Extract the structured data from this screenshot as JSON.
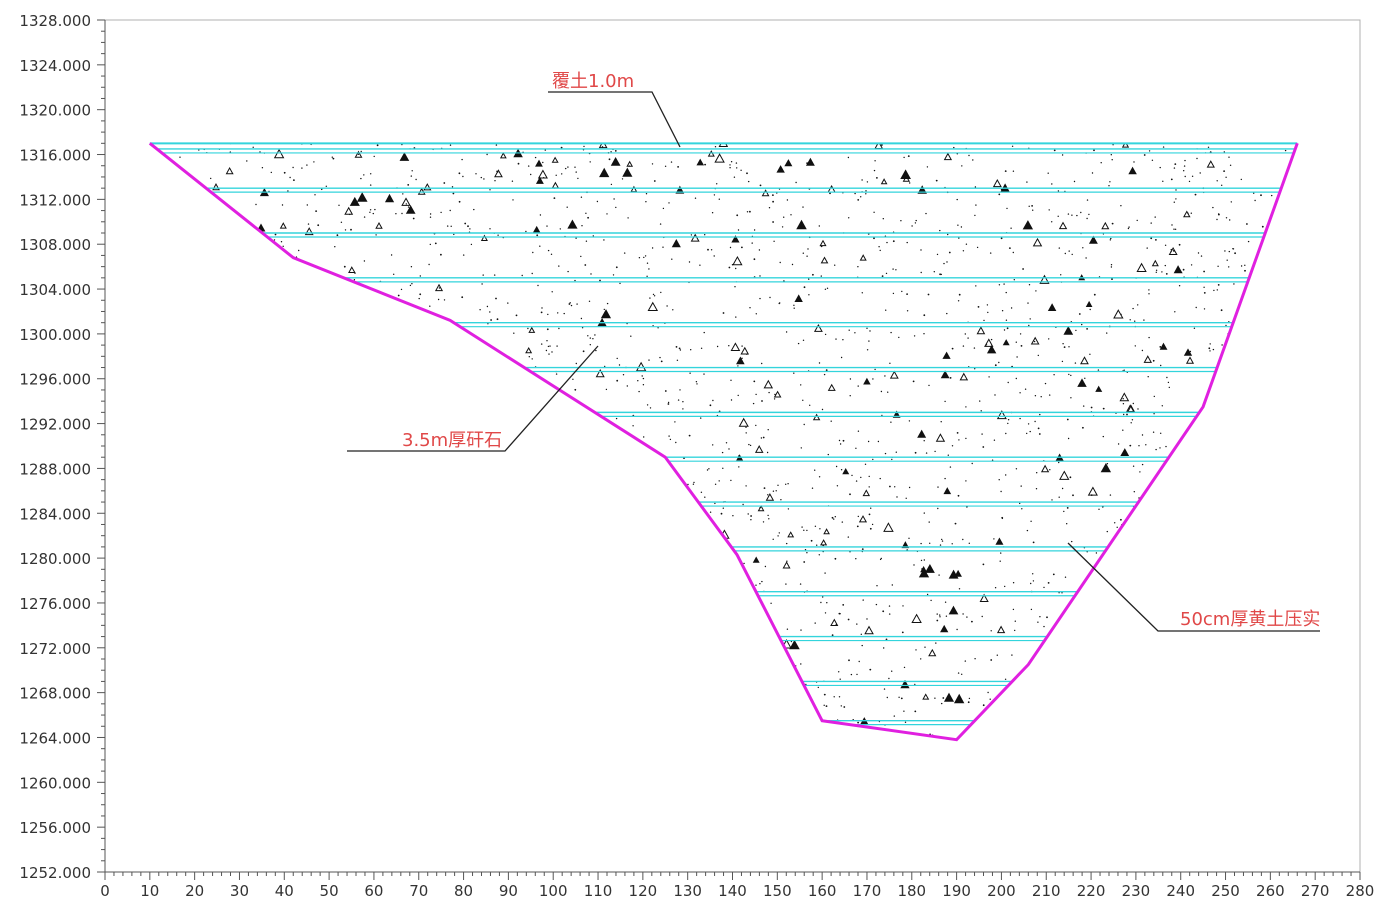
{
  "colors": {
    "boundary": "#e020e0",
    "layer_lines": "#33d4dc",
    "annotation_text": "#e04848",
    "leader": "#222222",
    "axis": "#555555",
    "gravel": "#111111"
  },
  "axes": {
    "y_ticks": [
      "1328.000",
      "1324.000",
      "1320.000",
      "1316.000",
      "1312.000",
      "1308.000",
      "1304.000",
      "1300.000",
      "1296.000",
      "1292.000",
      "1288.000",
      "1284.000",
      "1280.000",
      "1276.000",
      "1272.000",
      "1268.000",
      "1264.000",
      "1260.000",
      "1256.000",
      "1252.000"
    ],
    "x_ticks": [
      "0",
      "10",
      "20",
      "30",
      "40",
      "50",
      "60",
      "70",
      "80",
      "90",
      "100",
      "110",
      "120",
      "130",
      "140",
      "150",
      "160",
      "170",
      "180",
      "190",
      "200",
      "210",
      "220",
      "230",
      "240",
      "250",
      "260",
      "270",
      "280"
    ],
    "x_range": [
      0,
      280
    ],
    "y_range": [
      1252,
      1328
    ]
  },
  "section": {
    "profile": [
      [
        10,
        1317
      ],
      [
        42,
        1306.8
      ],
      [
        77,
        1301.2
      ],
      [
        125,
        1289
      ],
      [
        141,
        1280.3
      ],
      [
        160,
        1265.5
      ],
      [
        190,
        1263.8
      ],
      [
        206,
        1270.5
      ],
      [
        245,
        1293.5
      ],
      [
        266,
        1317
      ]
    ],
    "top_elevation": 1317,
    "layer_elevations": [
      1316.5,
      1313,
      1309,
      1305,
      1301,
      1297,
      1293,
      1289,
      1285,
      1281,
      1277,
      1273,
      1269,
      1265.5
    ]
  },
  "annotations": {
    "cover_soil": "覆土1.0m",
    "gravel_layer": "3.5m厚矸石",
    "compacted_clay": "50cm厚黄土压实"
  }
}
